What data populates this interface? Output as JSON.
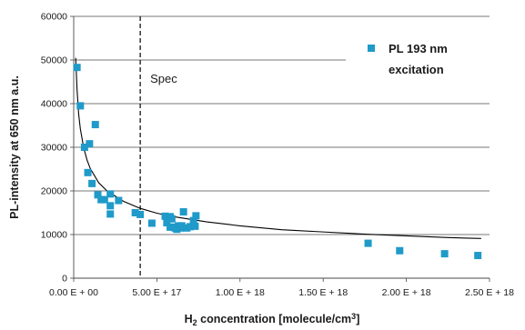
{
  "chart_data": {
    "type": "scatter",
    "title": "",
    "xlabel_main": "H",
    "xlabel_sub": "2",
    "xlabel_rest": " concentration [molecule/cm",
    "xlabel_sup": "3",
    "xlabel_end": "]",
    "ylabel": "PL-intensity at 650 nm a.u.",
    "xlim": [
      0,
      2.5e+18
    ],
    "ylim": [
      0,
      60000
    ],
    "x_ticks": [
      0,
      5e+17,
      1e+18,
      1.5e+18,
      2e+18,
      2.5e+18
    ],
    "x_tick_labels": [
      "0.00 E + 00",
      "5.00 E + 17",
      "1.00 E + 18",
      "1.50 E + 18",
      "2.00 E + 18",
      "2.50 E + 18"
    ],
    "y_ticks": [
      0,
      10000,
      20000,
      30000,
      40000,
      50000,
      60000
    ],
    "y_tick_labels": [
      "0",
      "10000",
      "20000",
      "30000",
      "40000",
      "50000",
      "60000"
    ],
    "grid": "horizontal",
    "legend_position": "top-right",
    "series": [
      {
        "name": "PL 193 nm excitation",
        "legend_line1": "PL 193 nm",
        "legend_line2": "excitation",
        "color": "#1f9ac9",
        "marker": "square",
        "x": [
          2e+16,
          4e+16,
          6.5e+16,
          8.5e+16,
          9.5e+16,
          1.1e+17,
          1.3e+17,
          1.45e+17,
          1.65e+17,
          1.85e+17,
          2.2e+17,
          2.2e+17,
          2.2e+17,
          2.7e+17,
          3.7e+17,
          4e+17,
          4.7e+17,
          5.5e+17,
          5.6e+17,
          5.8e+17,
          5.8e+17,
          5.9e+17,
          6e+17,
          6.1e+17,
          6.2e+17,
          6.3e+17,
          6.4e+17,
          6.5e+17,
          6.6e+17,
          6.8e+17,
          7e+17,
          7.2e+17,
          7.3e+17,
          7.35e+17,
          1.77e+18,
          1.96e+18,
          2.23e+18,
          2.43e+18
        ],
        "y": [
          48300,
          39500,
          30000,
          24200,
          30800,
          21700,
          35200,
          19100,
          18000,
          18000,
          19300,
          16600,
          14700,
          17800,
          15000,
          14600,
          12600,
          14200,
          12700,
          11700,
          14100,
          13600,
          11700,
          11500,
          11200,
          12000,
          11500,
          12000,
          15200,
          11500,
          11800,
          13200,
          11900,
          14300,
          8000,
          6300,
          5600,
          5200
        ]
      }
    ],
    "trendline": {
      "type": "power",
      "color": "#000000",
      "x": [
        1.2e+16,
        2e+16,
        3e+16,
        4e+16,
        6e+16,
        8e+16,
        1e+17,
        1.5e+17,
        2e+17,
        3e+17,
        4e+17,
        5e+17,
        6e+17,
        8e+17,
        1e+18,
        1.25e+18,
        1.5e+18,
        1.75e+18,
        2e+18,
        2.25e+18,
        2.45e+18
      ],
      "y": [
        50500,
        43300,
        37500,
        34200,
        29900,
        27100,
        25100,
        21900,
        20000,
        17600,
        16000,
        14900,
        14100,
        12900,
        12000,
        11100,
        10600,
        10100,
        9700,
        9300,
        9100
      ]
    },
    "annotations": [
      {
        "type": "vertical-dashed-line",
        "x": 4e+17,
        "label": "Spec"
      }
    ]
  }
}
